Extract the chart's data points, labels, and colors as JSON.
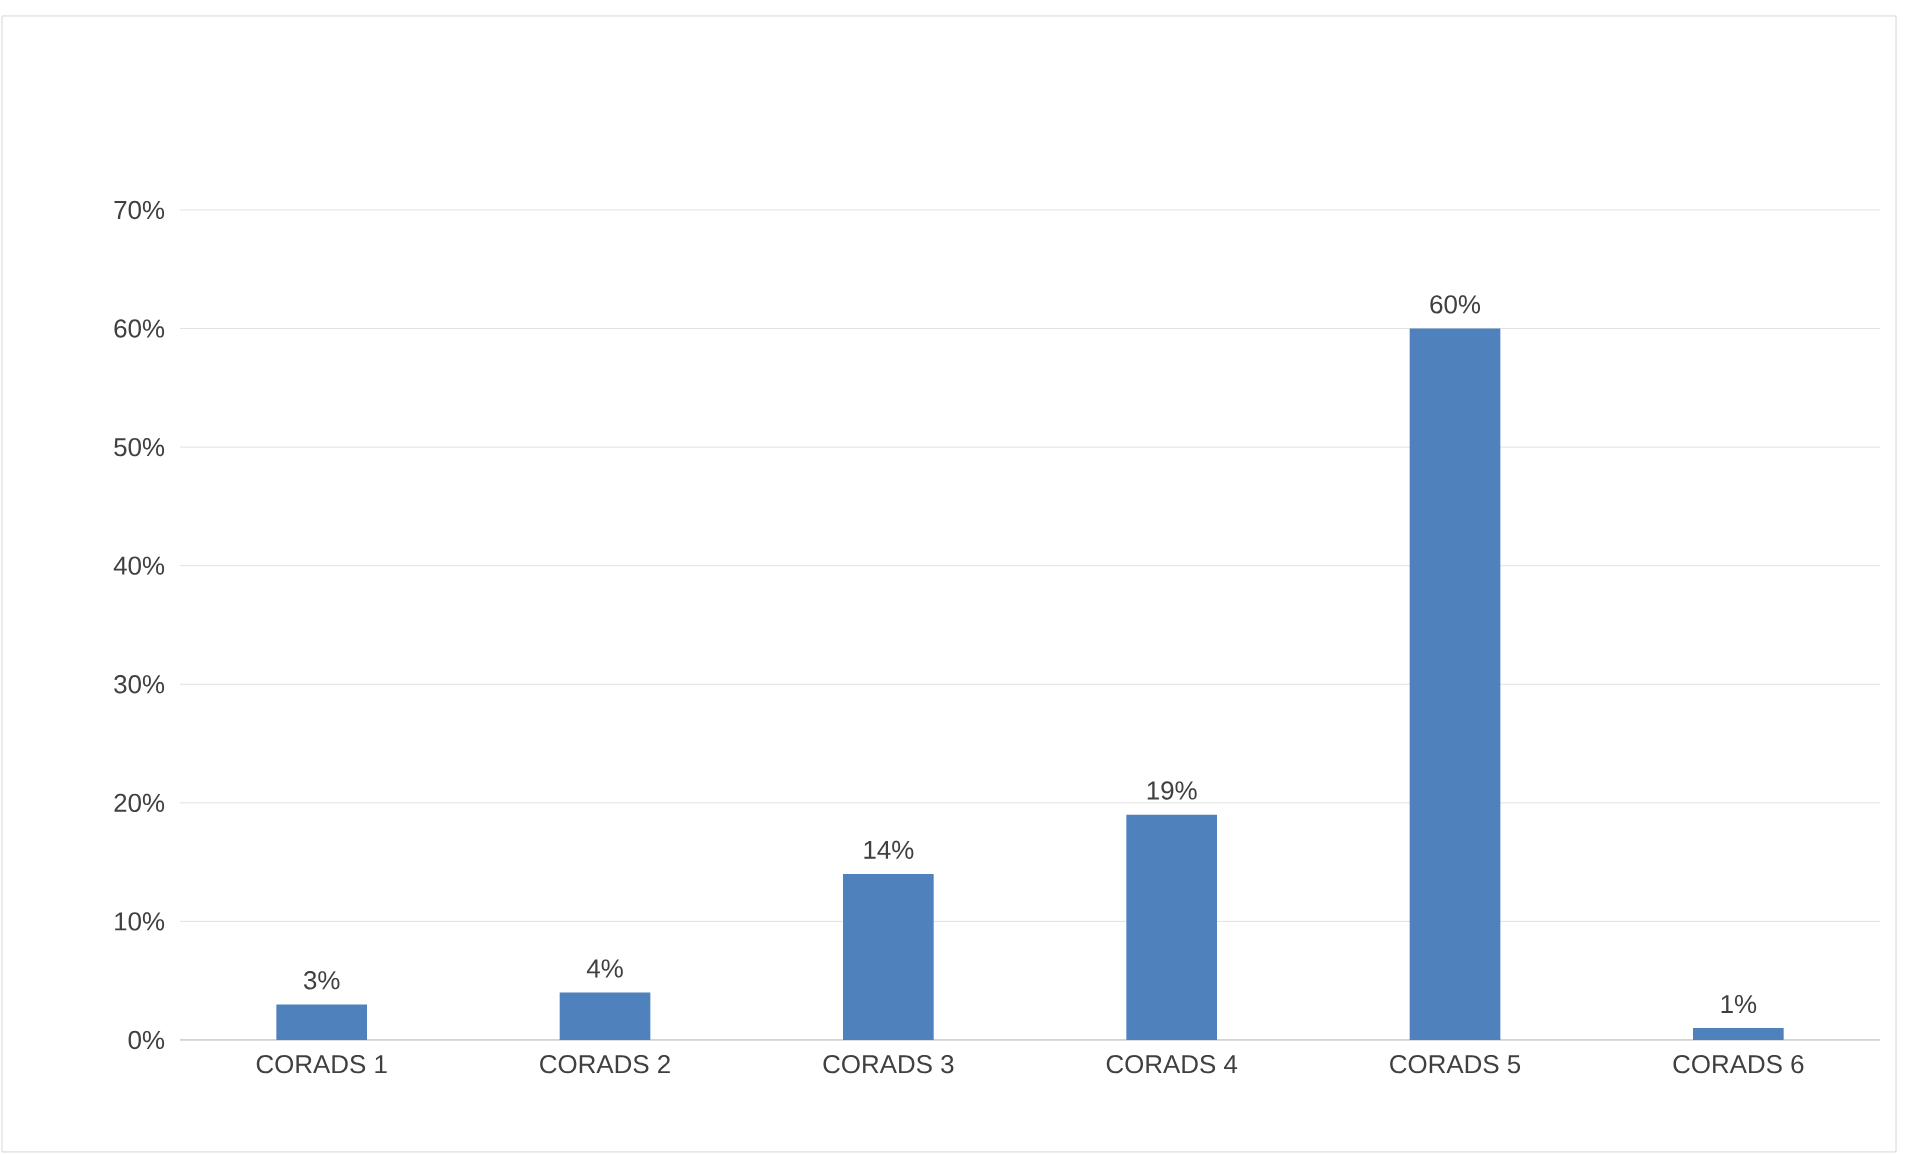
{
  "chart_data": {
    "type": "bar",
    "categories": [
      "CORADS 1",
      "CORADS 2",
      "CORADS 3",
      "CORADS 4",
      "CORADS 5",
      "CORADS 6"
    ],
    "values": [
      3,
      4,
      14,
      19,
      60,
      1
    ],
    "value_labels": [
      "3%",
      "4%",
      "14%",
      "19%",
      "60%",
      "1%"
    ],
    "color": "#4f81bd",
    "ylim": [
      0,
      70
    ],
    "yticks": [
      {
        "value": 0,
        "label": "0%"
      },
      {
        "value": 10,
        "label": "10%"
      },
      {
        "value": 20,
        "label": "20%"
      },
      {
        "value": 30,
        "label": "30%"
      },
      {
        "value": 40,
        "label": "40%"
      },
      {
        "value": 50,
        "label": "50%"
      },
      {
        "value": 60,
        "label": "60%"
      },
      {
        "value": 70,
        "label": "70%"
      }
    ],
    "grid": "y"
  }
}
